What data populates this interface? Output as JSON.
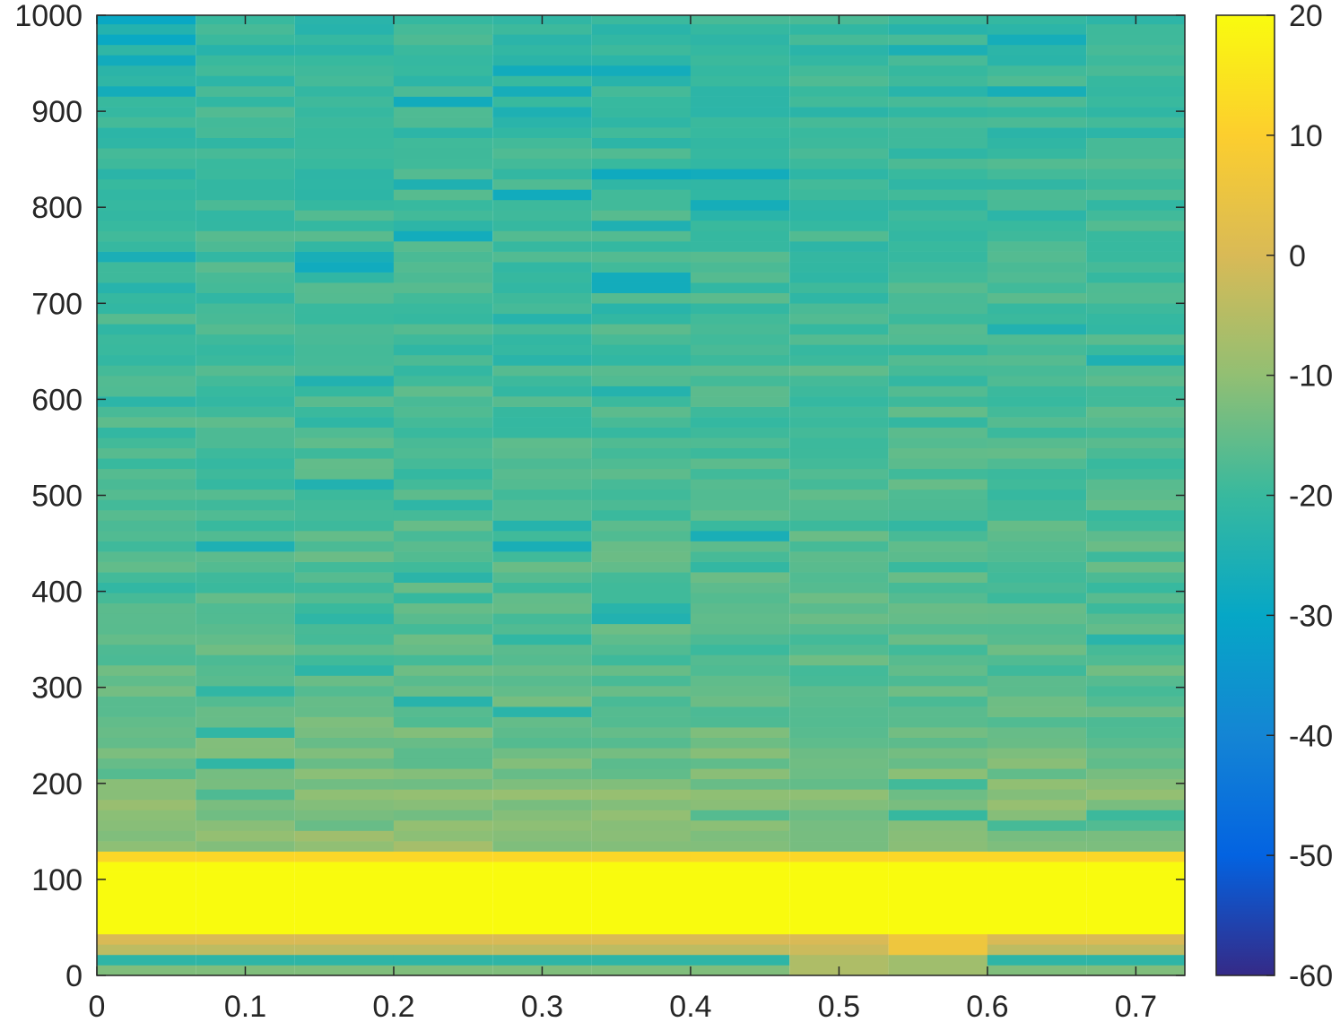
{
  "chart_data": {
    "type": "heatmap",
    "title": "",
    "xlabel": "",
    "ylabel": "",
    "xlim": [
      0,
      0.733
    ],
    "ylim": [
      0,
      1000
    ],
    "grid": false,
    "x_ticks": [
      "0",
      "0.1",
      "0.2",
      "0.3",
      "0.4",
      "0.5",
      "0.6",
      "0.7"
    ],
    "y_ticks": [
      "0",
      "100",
      "200",
      "300",
      "400",
      "500",
      "600",
      "700",
      "800",
      "900",
      "1000"
    ],
    "colorbar": {
      "position": "right",
      "clim": [
        -60,
        20
      ],
      "ticks": [
        "-60",
        "-50",
        "-40",
        "-30",
        "-20",
        "-10",
        "0",
        "10",
        "20"
      ],
      "colormap": "parula",
      "colors": [
        "#352a87",
        "#0363e1",
        "#1485d4",
        "#06a7c6",
        "#38b99e",
        "#92bf73",
        "#d9ba56",
        "#fcce2e",
        "#f9fb0e"
      ]
    },
    "time_frames": [
      0.0333,
      0.1,
      0.1667,
      0.2333,
      0.3,
      0.3667,
      0.4333,
      0.5,
      0.5667,
      0.6333,
      0.7
    ],
    "frame_width": 0.0667,
    "freq_bin_width": 10.77,
    "freq_bins_count": 93,
    "power_db_by_frame": [
      {
        "t": 0.0333,
        "low_bins": [
          -12,
          -22,
          -4,
          0,
          20,
          20,
          20,
          20,
          20,
          20,
          20,
          12
        ],
        "base": -18
      },
      {
        "t": 0.1,
        "low_bins": [
          -12,
          -22,
          -4,
          0,
          20,
          20,
          20,
          20,
          20,
          20,
          20,
          12
        ],
        "base": -18
      },
      {
        "t": 0.1667,
        "low_bins": [
          -12,
          -22,
          -4,
          0,
          20,
          20,
          20,
          20,
          20,
          20,
          20,
          12
        ],
        "base": -18
      },
      {
        "t": 0.2333,
        "low_bins": [
          -12,
          -22,
          -4,
          0,
          20,
          20,
          20,
          20,
          20,
          20,
          20,
          12
        ],
        "base": -18
      },
      {
        "t": 0.3,
        "low_bins": [
          -12,
          -22,
          -4,
          0,
          20,
          20,
          20,
          20,
          20,
          20,
          20,
          12
        ],
        "base": -18
      },
      {
        "t": 0.3667,
        "low_bins": [
          -12,
          -22,
          -4,
          0,
          20,
          20,
          20,
          20,
          20,
          20,
          20,
          12
        ],
        "base": -18
      },
      {
        "t": 0.4333,
        "low_bins": [
          -12,
          -22,
          -4,
          0,
          20,
          20,
          20,
          20,
          20,
          20,
          20,
          12
        ],
        "base": -18
      },
      {
        "t": 0.5,
        "low_bins": [
          -6,
          -6,
          -2,
          0,
          20,
          20,
          20,
          20,
          20,
          20,
          20,
          12
        ],
        "base": -16
      },
      {
        "t": 0.5667,
        "low_bins": [
          -8,
          -8,
          6,
          6,
          20,
          20,
          20,
          20,
          20,
          20,
          20,
          12
        ],
        "base": -18
      },
      {
        "t": 0.6333,
        "low_bins": [
          -12,
          -22,
          -4,
          0,
          20,
          20,
          20,
          20,
          20,
          20,
          20,
          12
        ],
        "base": -18
      },
      {
        "t": 0.7,
        "low_bins": [
          -12,
          -22,
          -4,
          0,
          20,
          20,
          20,
          20,
          20,
          20,
          20,
          12
        ],
        "base": -18
      }
    ]
  }
}
